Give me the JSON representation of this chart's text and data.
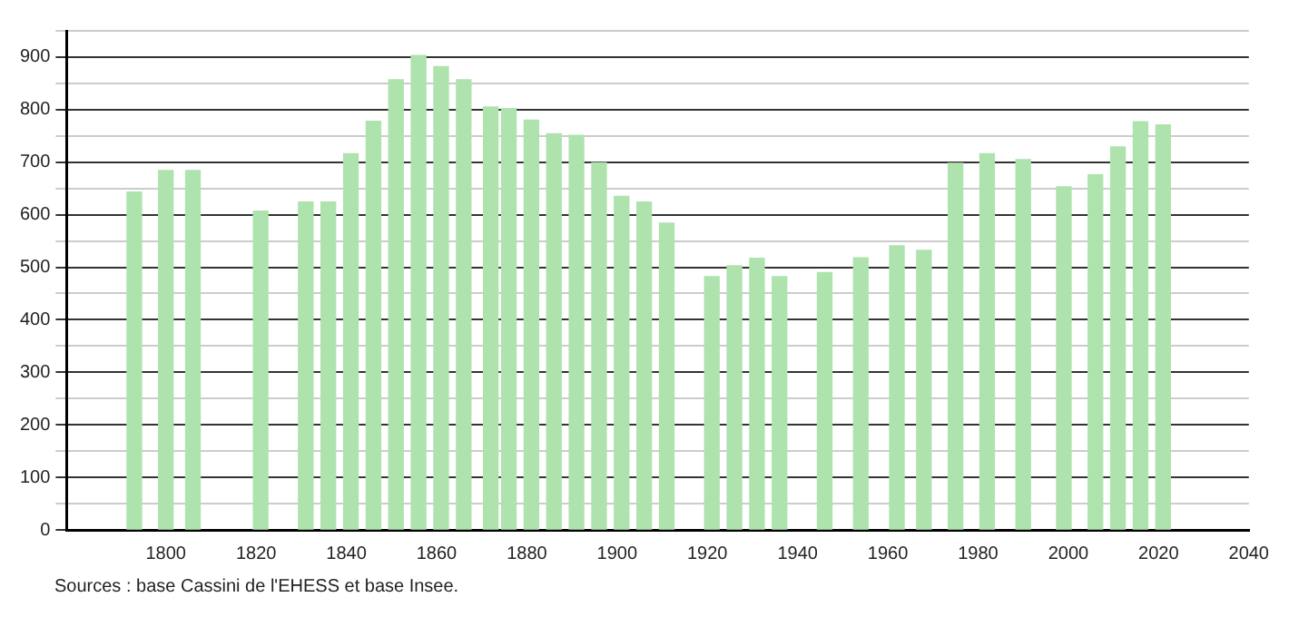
{
  "chart_data": {
    "type": "bar",
    "x": [
      1793,
      1800,
      1806,
      1821,
      1831,
      1836,
      1841,
      1846,
      1851,
      1856,
      1861,
      1866,
      1872,
      1876,
      1881,
      1886,
      1891,
      1896,
      1901,
      1906,
      1911,
      1921,
      1926,
      1931,
      1936,
      1946,
      1954,
      1962,
      1968,
      1975,
      1982,
      1990,
      1999,
      2006,
      2011,
      2016,
      2021
    ],
    "values": [
      643,
      684,
      684,
      607,
      624,
      624,
      716,
      778,
      857,
      903,
      882,
      857,
      805,
      802,
      780,
      754,
      751,
      699,
      635,
      624,
      584,
      482,
      503,
      517,
      482,
      490,
      518,
      541,
      532,
      698,
      716,
      705,
      653,
      676,
      729,
      777,
      771
    ],
    "color": "#aee3ae",
    "xlim": [
      1778,
      2040
    ],
    "xticks": [
      1800,
      1820,
      1840,
      1860,
      1880,
      1900,
      1920,
      1940,
      1960,
      1980,
      2000,
      2020,
      2040
    ],
    "ylim": [
      0,
      950
    ],
    "yticks": [
      0,
      {
        "value": 50,
        "label": null
      },
      100,
      {
        "value": 150,
        "label": null
      },
      200,
      {
        "value": 250,
        "label": null
      },
      300,
      {
        "value": 350,
        "label": null
      },
      400,
      {
        "value": 450,
        "label": null
      },
      500,
      {
        "value": 550,
        "label": null
      },
      600,
      {
        "value": 650,
        "label": null
      },
      700,
      {
        "value": 750,
        "label": null
      },
      800,
      {
        "value": 850,
        "label": null
      },
      900,
      {
        "value": 950,
        "label": null
      }
    ],
    "grid": "y",
    "legend": false,
    "annotations": [
      "Sources : base Cassini de l'EHESS et base Insee."
    ]
  }
}
